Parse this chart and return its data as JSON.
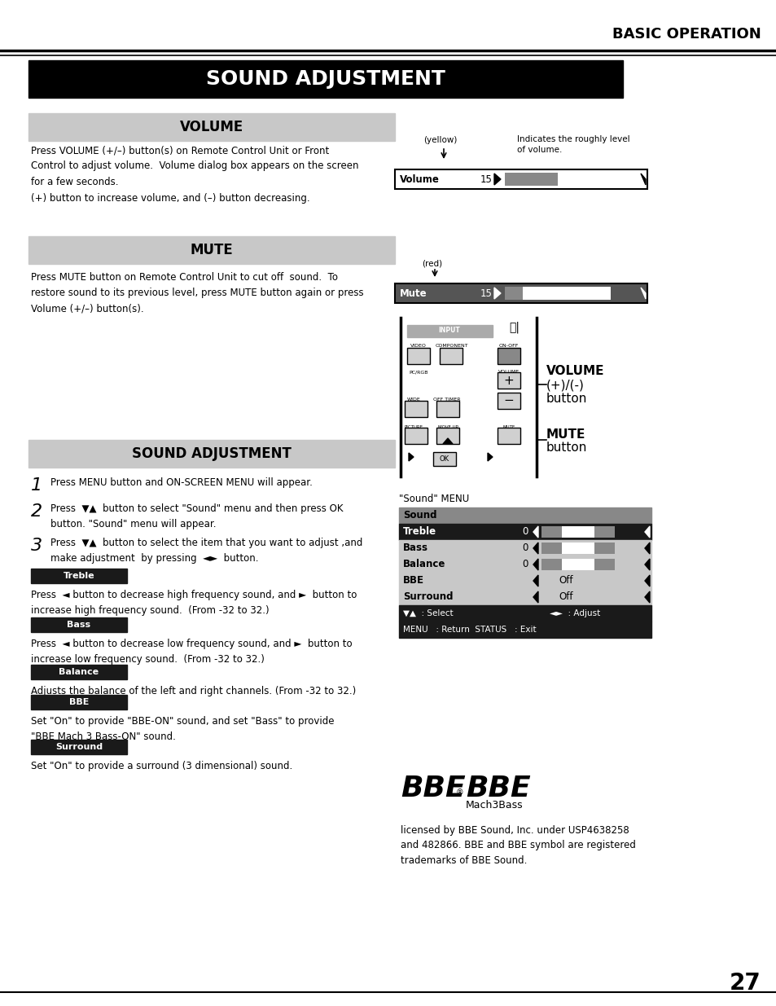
{
  "page_title": "BASIC OPERATION",
  "main_title": "SOUND ADJUSTMENT",
  "section1_title": "VOLUME",
  "section1_text": "Press VOLUME (+/–) button(s) on Remote Control Unit or Front\nControl to adjust volume.  Volume dialog box appears on the screen\nfor a few seconds.\n(+) button to increase volume, and (–) button decreasing.",
  "section2_title": "MUTE",
  "section2_text": "Press MUTE button on Remote Control Unit to cut off  sound.  To\nrestore sound to its previous level, press MUTE button again or press\nVolume (+/–) button(s).",
  "section3_title": "SOUND ADJUSTMENT",
  "step1": "Press MENU button and ON-SCREEN MENU will appear.",
  "step2_line1": "Press  ▼▲  button to select \"Sound\" menu and then press OK",
  "step2_line2": "button. \"Sound\" menu will appear.",
  "step3_line1": "Press  ▼▲  button to select the item that you want to adjust ,and",
  "step3_line2": "make adjustment  by pressing  ◄►  button.",
  "treble_label": "Treble",
  "treble_text": "Press  ◄ button to decrease high frequency sound, and ►  button to\nincrease high frequency sound.  (From -32 to 32.)",
  "bass_label": "Bass",
  "bass_text": "Press  ◄ button to decrease low frequency sound, and ►  button to\nincrease low frequency sound.  (From -32 to 32.)",
  "balance_label": "Balance",
  "balance_text": "Adjusts the balance of the left and right channels. (From -32 to 32.)",
  "bbe_label": "BBE",
  "bbe_text": "Set \"On\" to provide \"BBE-ON\" sound, and set \"Bass\" to provide\n\"BBE Mach 3 Bass-ON\" sound.",
  "surround_label": "Surround",
  "surround_text": "Set \"On\" to provide a surround (3 dimensional) sound.",
  "bbe_licensed": "licensed by BBE Sound, Inc. under USP4638258\nand 482866. BBE and BBE symbol are registered\ntrademarks of BBE Sound.",
  "sound_menu_label": "\"Sound\" MENU",
  "volume_label1": "VOLUME",
  "volume_label2": "(+)/(-)",
  "volume_label3": "button",
  "mute_label1": "MUTE",
  "mute_label2": "button",
  "volume_yellow": "(yellow)",
  "volume_indicates": "Indicates the roughly level\nof volume.",
  "mute_red": "(red)",
  "page_number": "27"
}
